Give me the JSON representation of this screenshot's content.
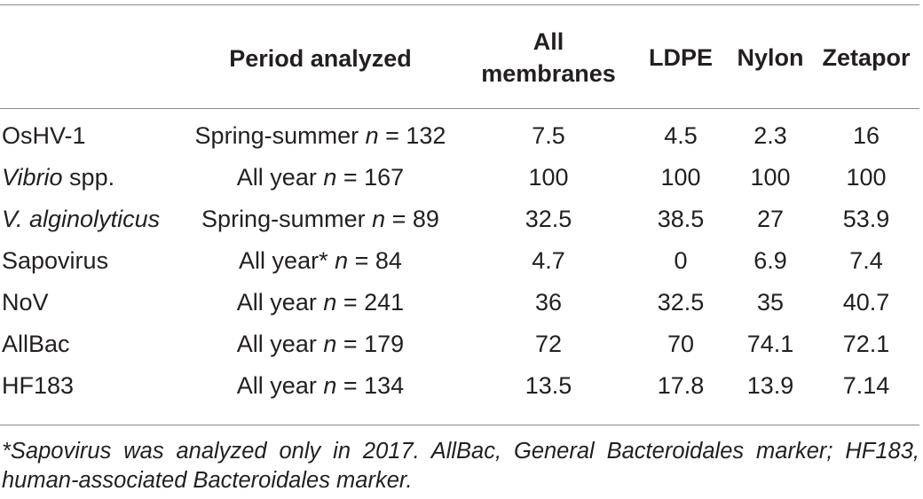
{
  "table": {
    "headers": [
      "",
      "Period analyzed",
      "All membranes",
      "LDPE",
      "Nylon",
      "Zetapor"
    ],
    "rows": [
      {
        "target": "OsHV-1",
        "target_italic": false,
        "period_text": "Spring-summer",
        "n": "132",
        "values": [
          "7.5",
          "4.5",
          "2.3",
          "16"
        ]
      },
      {
        "target": "Vibrio",
        "target_suffix": " spp.",
        "target_italic": true,
        "period_text": "All year",
        "n": "167",
        "values": [
          "100",
          "100",
          "100",
          "100"
        ]
      },
      {
        "target": "V. alginolyticus",
        "target_italic": true,
        "period_text": "Spring-summer",
        "n": "89",
        "values": [
          "32.5",
          "38.5",
          "27",
          "53.9"
        ]
      },
      {
        "target": "Sapovirus",
        "target_italic": false,
        "period_text": "All year*",
        "n": "84",
        "values": [
          "4.7",
          "0",
          "6.9",
          "7.4"
        ]
      },
      {
        "target": "NoV",
        "target_italic": false,
        "period_text": "All year",
        "n": "241",
        "values": [
          "36",
          "32.5",
          "35",
          "40.7"
        ]
      },
      {
        "target": "AllBac",
        "target_italic": false,
        "period_text": "All year",
        "n": "179",
        "values": [
          "72",
          "70",
          "74.1",
          "72.1"
        ]
      },
      {
        "target": "HF183",
        "target_italic": false,
        "period_text": "All year",
        "n": "134",
        "values": [
          "13.5",
          "17.8",
          "13.9",
          "7.14"
        ]
      }
    ],
    "n_label": "n",
    "n_equals": " = "
  },
  "footnote": "*Sapovirus was analyzed only in 2017. AllBac, General Bacteroidales marker; HF183, human-associated Bacteroidales marker."
}
